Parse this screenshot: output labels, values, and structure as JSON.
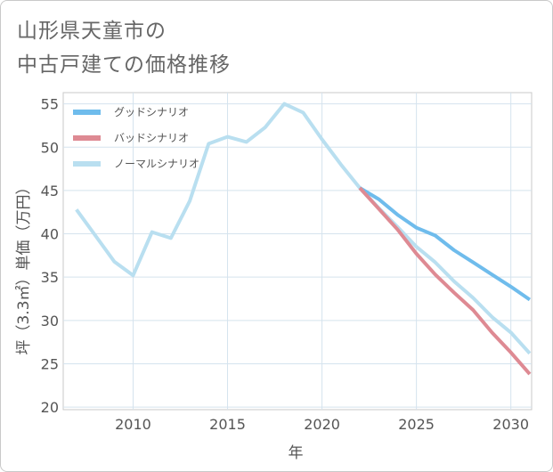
{
  "title_lines": [
    "山形県天童市の",
    "中古戸建ての価格推移"
  ],
  "chart_data": {
    "type": "line",
    "title": "山形県天童市の中古戸建ての価格推移",
    "xlabel": "年",
    "ylabel": "坪（3.3㎡）単価（万円）",
    "xlim": [
      2006.3,
      2031.1
    ],
    "ylim": [
      19.7,
      56.3
    ],
    "x_ticks": [
      2010,
      2015,
      2020,
      2025,
      2030
    ],
    "y_ticks": [
      20,
      25,
      30,
      35,
      40,
      45,
      50,
      55
    ],
    "grid": true,
    "legend_position": "top-left",
    "series": [
      {
        "name": "グッドシナリオ",
        "color": "#6fbcec",
        "x": [
          2022,
          2023,
          2024,
          2025,
          2026,
          2027,
          2028,
          2029,
          2030,
          2031
        ],
        "y": [
          45.3,
          44.0,
          42.2,
          40.7,
          39.8,
          38.1,
          36.7,
          35.3,
          33.9,
          32.4
        ]
      },
      {
        "name": "バッドシナリオ",
        "color": "#de8a93",
        "x": [
          2022,
          2023,
          2024,
          2025,
          2026,
          2027,
          2028,
          2029,
          2030,
          2031
        ],
        "y": [
          45.3,
          42.9,
          40.5,
          37.7,
          35.3,
          33.2,
          31.2,
          28.6,
          26.3,
          23.8
        ]
      },
      {
        "name": "ノーマルシナリオ",
        "color": "#b9dff0",
        "x": [
          2007,
          2008,
          2009,
          2010,
          2011,
          2012,
          2013,
          2014,
          2015,
          2016,
          2017,
          2018,
          2019,
          2020,
          2021,
          2022,
          2023,
          2024,
          2025,
          2026,
          2027,
          2028,
          2029,
          2030,
          2031
        ],
        "y": [
          42.8,
          39.8,
          36.8,
          35.2,
          40.2,
          39.5,
          43.8,
          50.4,
          51.2,
          50.6,
          52.3,
          55.0,
          54.0,
          50.9,
          48.0,
          45.3,
          43.0,
          40.8,
          38.5,
          36.7,
          34.5,
          32.6,
          30.4,
          28.6,
          26.2
        ]
      }
    ]
  }
}
